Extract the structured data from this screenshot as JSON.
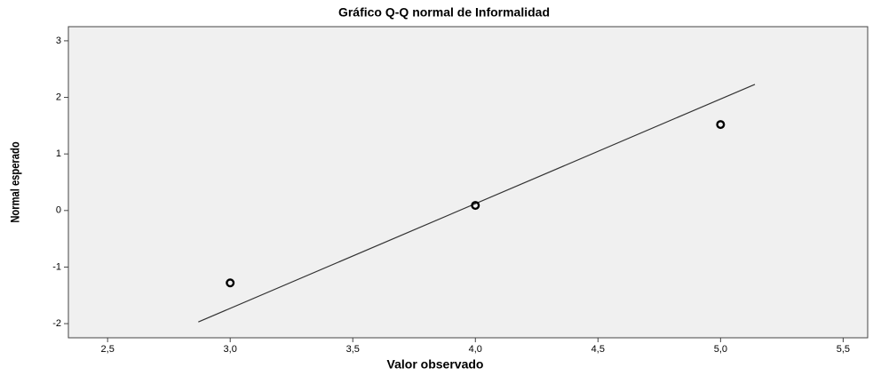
{
  "chart_data": {
    "type": "scatter",
    "title": "Gráfico Q-Q normal de Informalidad",
    "xlabel": "Valor observado",
    "ylabel": "Normal esperado",
    "x": [
      3.0,
      4.0,
      5.0
    ],
    "values": [
      -1.28,
      0.09,
      1.52
    ],
    "color": "#000000",
    "reference_line": {
      "x": [
        2.87,
        5.14
      ],
      "y": [
        -1.97,
        2.23
      ]
    },
    "xlim": [
      2.34,
      5.6
    ],
    "ylim": [
      -2.25,
      3.25
    ],
    "xticks": [
      {
        "value": 2.5,
        "label": "2,5"
      },
      {
        "value": 3.0,
        "label": "3,0"
      },
      {
        "value": 3.5,
        "label": "3,5"
      },
      {
        "value": 4.0,
        "label": "4,0"
      },
      {
        "value": 4.5,
        "label": "4,5"
      },
      {
        "value": 5.0,
        "label": "5,0"
      },
      {
        "value": 5.5,
        "label": "5,5"
      }
    ],
    "yticks": [
      -2,
      -1,
      0,
      1,
      2,
      3
    ]
  }
}
